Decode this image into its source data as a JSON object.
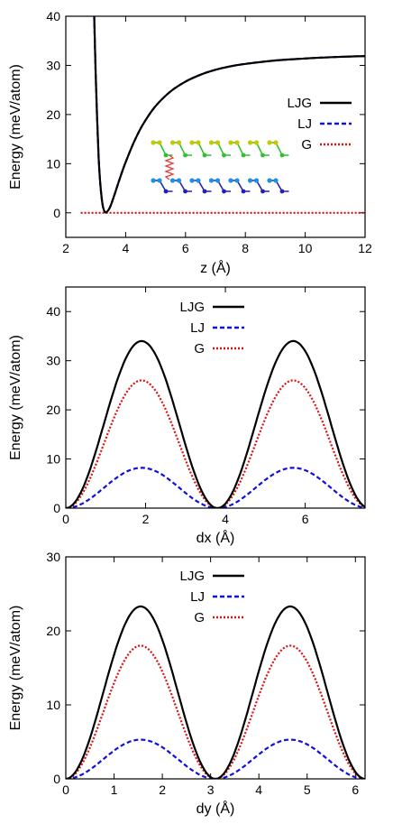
{
  "chart_data": [
    {
      "type": "line",
      "xlabel": "z (Å)",
      "ylabel": "Energy (meV/atom)",
      "xlim": [
        2,
        12
      ],
      "ylim": [
        -5,
        40
      ],
      "xticks": [
        2,
        4,
        6,
        8,
        10,
        12
      ],
      "yticks": [
        0,
        10,
        20,
        30,
        40
      ],
      "legend_position": "right",
      "series": [
        {
          "name": "LJG",
          "color": "#000000",
          "dash": "solid",
          "x": [
            2.95,
            3.0,
            3.1,
            3.2,
            3.3,
            3.45,
            3.6,
            3.8,
            4.0,
            4.3,
            4.6,
            5.0,
            5.5,
            6.0,
            6.5,
            7.0,
            7.5,
            8.0,
            9.0,
            10.0,
            11.0,
            12.0
          ],
          "y": [
            40,
            28,
            11,
            3,
            0.2,
            0.8,
            3.2,
            6.9,
            10.3,
            14.7,
            18.2,
            21.7,
            24.7,
            26.7,
            28.1,
            29.1,
            29.8,
            30.3,
            31.0,
            31.4,
            31.7,
            31.9
          ]
        },
        {
          "name": "LJ",
          "color": "#1010d8",
          "dash": "dashed",
          "x": [
            2.95,
            3.0,
            3.1,
            3.2,
            3.3,
            3.45,
            3.6,
            3.8,
            4.0,
            4.3,
            4.6,
            5.0,
            5.5,
            6.0,
            6.5,
            7.0,
            7.5,
            8.0,
            9.0,
            10.0,
            11.0,
            12.0
          ],
          "y": [
            40,
            28,
            11,
            3,
            0.2,
            0.8,
            3.2,
            6.9,
            10.3,
            14.7,
            18.2,
            21.7,
            24.7,
            26.7,
            28.1,
            29.1,
            29.8,
            30.3,
            31.0,
            31.4,
            31.7,
            31.9
          ]
        },
        {
          "name": "G",
          "color": "#e01010",
          "dash": "dotted",
          "x": [
            2.5,
            12.0
          ],
          "y": [
            0,
            0
          ]
        }
      ],
      "inset": {
        "type": "bilayer-structure-illustration",
        "colors": {
          "top_layer": "#c8c800",
          "top_bonds": "#30c030",
          "bottom_layer": "#2090e0",
          "bottom_bonds": "#2020c0",
          "spring": "#e04040"
        }
      }
    },
    {
      "type": "line",
      "xlabel": "dx (Å)",
      "ylabel": "Energy (meV/atom)",
      "xlim": [
        0,
        7.5
      ],
      "ylim": [
        0,
        45
      ],
      "xticks": [
        0,
        2,
        4,
        6
      ],
      "yticks": [
        0,
        10,
        20,
        30,
        40
      ],
      "legend_position": "top-center",
      "period": 3.8,
      "peaks": {
        "LJG": 34,
        "LJ": 8.2,
        "G": 26
      },
      "series": [
        {
          "name": "LJG",
          "color": "#000000",
          "dash": "solid",
          "x": [
            0,
            0.4,
            0.8,
            1.2,
            1.6,
            1.9,
            2.2,
            2.6,
            3.0,
            3.4,
            3.8,
            4.2,
            4.6,
            5.0,
            5.4,
            5.7,
            6.0,
            6.4,
            6.8,
            7.2,
            7.5
          ],
          "y": [
            0,
            3.5,
            12.4,
            23.9,
            32.3,
            34.0,
            32.3,
            23.9,
            12.4,
            3.5,
            0,
            2.5,
            10.0,
            20.8,
            30.3,
            34.0,
            33.1,
            27.0,
            16.1,
            5.8,
            0.8
          ]
        },
        {
          "name": "LJ",
          "color": "#1010d8",
          "dash": "dashed",
          "x": [
            0,
            0.4,
            0.8,
            1.2,
            1.6,
            1.9,
            2.2,
            2.6,
            3.0,
            3.4,
            3.8,
            4.2,
            4.6,
            5.0,
            5.4,
            5.7,
            6.0,
            6.4,
            6.8,
            7.2,
            7.5
          ],
          "y": [
            0,
            0.8,
            3.0,
            5.8,
            7.8,
            8.2,
            7.8,
            5.8,
            3.0,
            0.8,
            0,
            0.6,
            2.4,
            5.0,
            7.3,
            8.2,
            8.0,
            6.5,
            3.9,
            1.4,
            0.2
          ]
        },
        {
          "name": "G",
          "color": "#e01010",
          "dash": "dotted",
          "x": [
            0,
            0.4,
            0.8,
            1.2,
            1.6,
            1.9,
            2.2,
            2.6,
            3.0,
            3.4,
            3.8,
            4.2,
            4.6,
            5.0,
            5.4,
            5.7,
            6.0,
            6.4,
            6.8,
            7.2,
            7.5
          ],
          "y": [
            0,
            2.7,
            9.5,
            18.3,
            24.7,
            26.0,
            24.7,
            18.3,
            9.5,
            2.7,
            0,
            1.9,
            7.7,
            15.9,
            23.2,
            26.0,
            25.3,
            20.6,
            12.3,
            4.4,
            0.6
          ]
        }
      ]
    },
    {
      "type": "line",
      "xlabel": "dy (Å)",
      "ylabel": "Energy (meV/atom)",
      "xlim": [
        0,
        6.2
      ],
      "ylim": [
        0,
        30
      ],
      "xticks": [
        0,
        1,
        2,
        3,
        4,
        5,
        6
      ],
      "yticks": [
        0,
        10,
        20,
        30
      ],
      "legend_position": "top-center",
      "period": 3.1,
      "peaks": {
        "LJG": 23.3,
        "LJ": 5.3,
        "G": 18
      },
      "series": [
        {
          "name": "LJG",
          "color": "#000000",
          "dash": "solid",
          "x": [
            0,
            0.3,
            0.6,
            0.9,
            1.2,
            1.55,
            1.9,
            2.2,
            2.5,
            2.8,
            3.1,
            3.4,
            3.7,
            4.0,
            4.3,
            4.65,
            5.0,
            5.3,
            5.6,
            5.9,
            6.2
          ],
          "y": [
            0,
            2.0,
            7.2,
            14.6,
            20.6,
            23.3,
            20.6,
            14.6,
            7.2,
            2.0,
            0,
            2.0,
            7.2,
            14.6,
            20.6,
            23.3,
            20.6,
            14.6,
            7.2,
            2.0,
            0
          ]
        },
        {
          "name": "LJ",
          "color": "#1010d8",
          "dash": "dashed",
          "x": [
            0,
            0.3,
            0.6,
            0.9,
            1.2,
            1.55,
            1.9,
            2.2,
            2.5,
            2.8,
            3.1,
            3.4,
            3.7,
            4.0,
            4.3,
            4.65,
            5.0,
            5.3,
            5.6,
            5.9,
            6.2
          ],
          "y": [
            0,
            0.5,
            1.6,
            3.3,
            4.7,
            5.3,
            4.7,
            3.3,
            1.6,
            0.5,
            0,
            0.5,
            1.6,
            3.3,
            4.7,
            5.3,
            4.7,
            3.3,
            1.6,
            0.5,
            0
          ]
        },
        {
          "name": "G",
          "color": "#e01010",
          "dash": "dotted",
          "x": [
            0,
            0.3,
            0.6,
            0.9,
            1.2,
            1.55,
            1.9,
            2.2,
            2.5,
            2.8,
            3.1,
            3.4,
            3.7,
            4.0,
            4.3,
            4.65,
            5.0,
            5.3,
            5.6,
            5.9,
            6.2
          ],
          "y": [
            0,
            1.6,
            5.6,
            11.3,
            16.0,
            18.0,
            16.0,
            11.3,
            5.6,
            1.6,
            0,
            1.6,
            5.6,
            11.3,
            16.0,
            18.0,
            16.0,
            11.3,
            5.6,
            1.6,
            0
          ]
        }
      ]
    }
  ]
}
